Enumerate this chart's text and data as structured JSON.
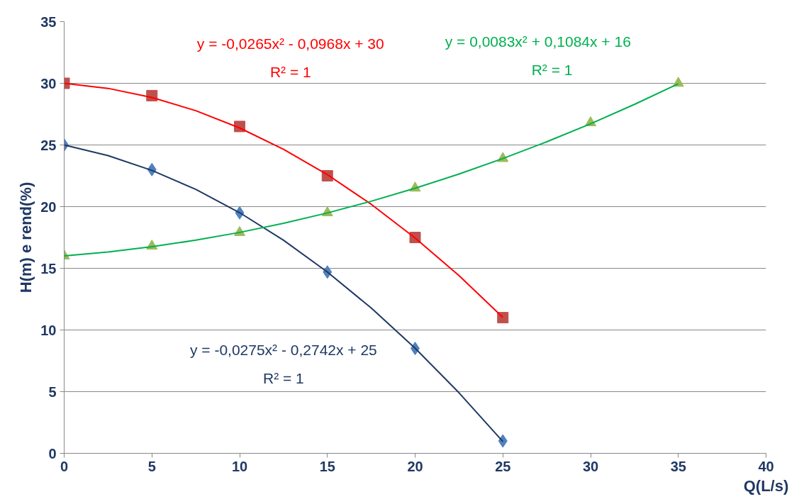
{
  "chart_data": {
    "type": "scatter",
    "xlabel": "Q(L/s)",
    "ylabel": "H(m) e rend(%)",
    "xlim": [
      0,
      40
    ],
    "ylim": [
      0,
      35
    ],
    "xticks": [
      0,
      5,
      10,
      15,
      20,
      25,
      30,
      35,
      40
    ],
    "yticks": [
      0,
      5,
      10,
      15,
      20,
      25,
      30,
      35
    ],
    "grid": "y",
    "series": [
      {
        "marker": "diamond",
        "color": "#4f81bd",
        "x": [
          0,
          5,
          10,
          15,
          20,
          25
        ],
        "values": [
          25,
          23,
          19.5,
          14.7,
          8.5,
          1.0
        ]
      },
      {
        "marker": "square",
        "color": "#c0504d",
        "x": [
          0,
          5,
          10,
          15,
          20,
          25
        ],
        "values": [
          30,
          29,
          26.5,
          22.5,
          17.5,
          11
        ]
      },
      {
        "marker": "triangle",
        "color": "#9bbb59",
        "x": [
          0,
          5,
          10,
          15,
          20,
          25,
          30,
          35
        ],
        "values": [
          16,
          16.8,
          17.9,
          19.5,
          21.5,
          23.9,
          26.8,
          30
        ]
      },
      {
        "type": "line",
        "color": "#1f3864",
        "x": [
          0,
          2.5,
          5,
          7.5,
          10,
          12.5,
          15,
          17.5,
          20,
          22.5,
          25
        ],
        "values": [
          25,
          24.14,
          22.94,
          21.4,
          19.51,
          17.28,
          14.7,
          11.78,
          8.52,
          4.91,
          0.96
        ]
      },
      {
        "type": "line",
        "color": "#ff0000",
        "x": [
          0,
          2.5,
          5,
          7.5,
          10,
          12.5,
          15,
          17.5,
          20,
          22.5,
          25
        ],
        "values": [
          30,
          29.59,
          28.85,
          27.78,
          26.38,
          24.65,
          22.59,
          20.19,
          17.46,
          14.41,
          11.02
        ]
      },
      {
        "type": "line",
        "color": "#00b050",
        "x": [
          0,
          2.5,
          5,
          7.5,
          10,
          12.5,
          15,
          17.5,
          20,
          22.5,
          25,
          27.5,
          30,
          32.5,
          35
        ],
        "values": [
          16,
          16.32,
          16.75,
          17.28,
          17.91,
          18.65,
          19.49,
          20.44,
          21.49,
          22.64,
          23.9,
          25.26,
          26.72,
          28.29,
          29.96
        ]
      }
    ],
    "annotations": [
      "y = -0,0265x² - 0,0968x + 30",
      "R² = 1",
      "y = 0,0083x² + 0,1084x + 16",
      "R² = 1",
      "y = -0,0275x² - 0,2742x + 25",
      "R² = 1"
    ]
  }
}
